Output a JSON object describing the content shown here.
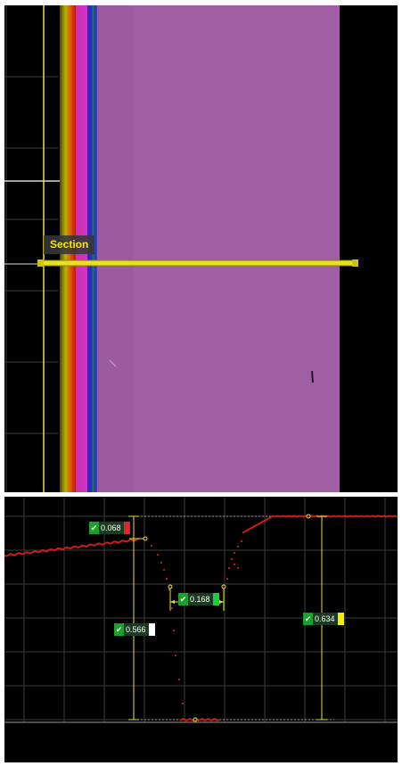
{
  "top_view": {
    "section_label": "Section"
  },
  "profile": {
    "measurements": [
      {
        "id": "m1",
        "value": "0.068",
        "swatch": "#e3262a"
      },
      {
        "id": "m2",
        "value": "0.168",
        "swatch": "#17d23a"
      },
      {
        "id": "m3",
        "value": "0.566",
        "swatch": "#ffffff"
      },
      {
        "id": "m4",
        "value": "0.634",
        "swatch": "#f6ee00"
      }
    ],
    "check_glyph": "✔"
  },
  "colors": {
    "surface": "#a05ea3",
    "section_line": "#e8e021",
    "guide": "#e9e23a",
    "profile_points": "#d41d1d",
    "grid": "#3c3c3c"
  }
}
